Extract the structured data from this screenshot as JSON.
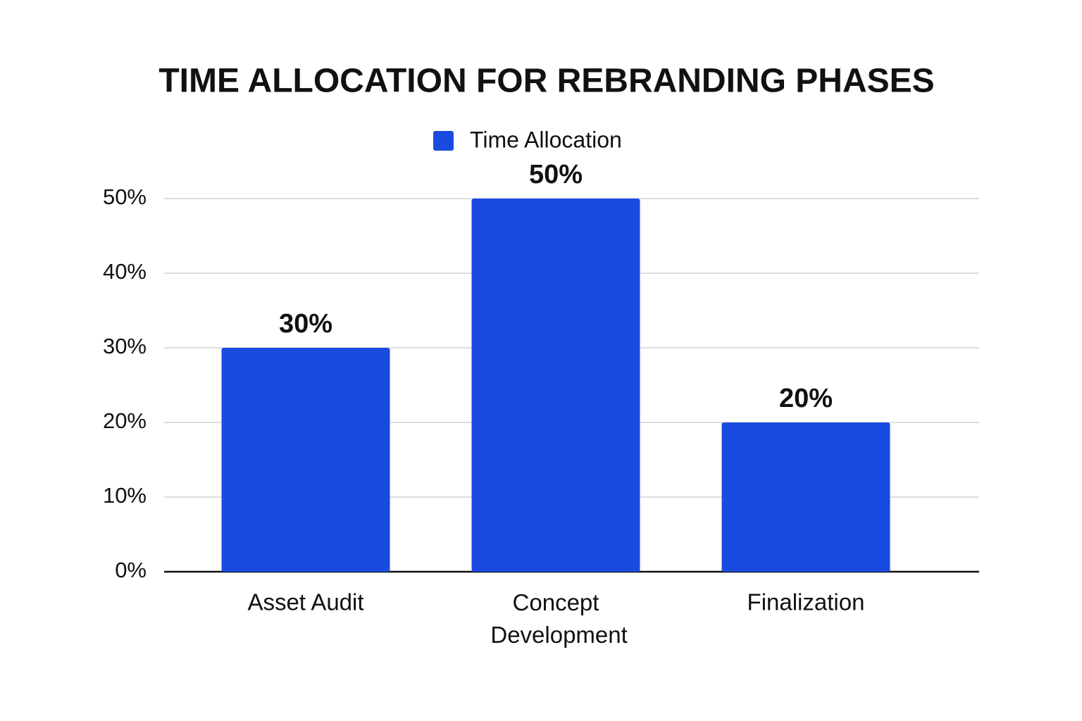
{
  "chart_data": {
    "type": "bar",
    "title": "TIME ALLOCATION FOR REBRANDING PHASES",
    "categories": [
      "Asset Audit",
      "Concept Development",
      "Finalization"
    ],
    "series": [
      {
        "name": "Time Allocation",
        "color": "#1a4be0",
        "values": [
          30,
          50,
          20
        ],
        "value_labels": [
          "30%",
          "50%",
          "20%"
        ]
      }
    ],
    "ylim": [
      0,
      50
    ],
    "yticks": [
      {
        "value": 0,
        "label": "0%"
      },
      {
        "value": 10,
        "label": "10%"
      },
      {
        "value": 20,
        "label": "20%"
      },
      {
        "value": 30,
        "label": "30%"
      },
      {
        "value": 40,
        "label": "40%"
      },
      {
        "value": 50,
        "label": "50%"
      }
    ],
    "grid": true,
    "legend": "top"
  }
}
